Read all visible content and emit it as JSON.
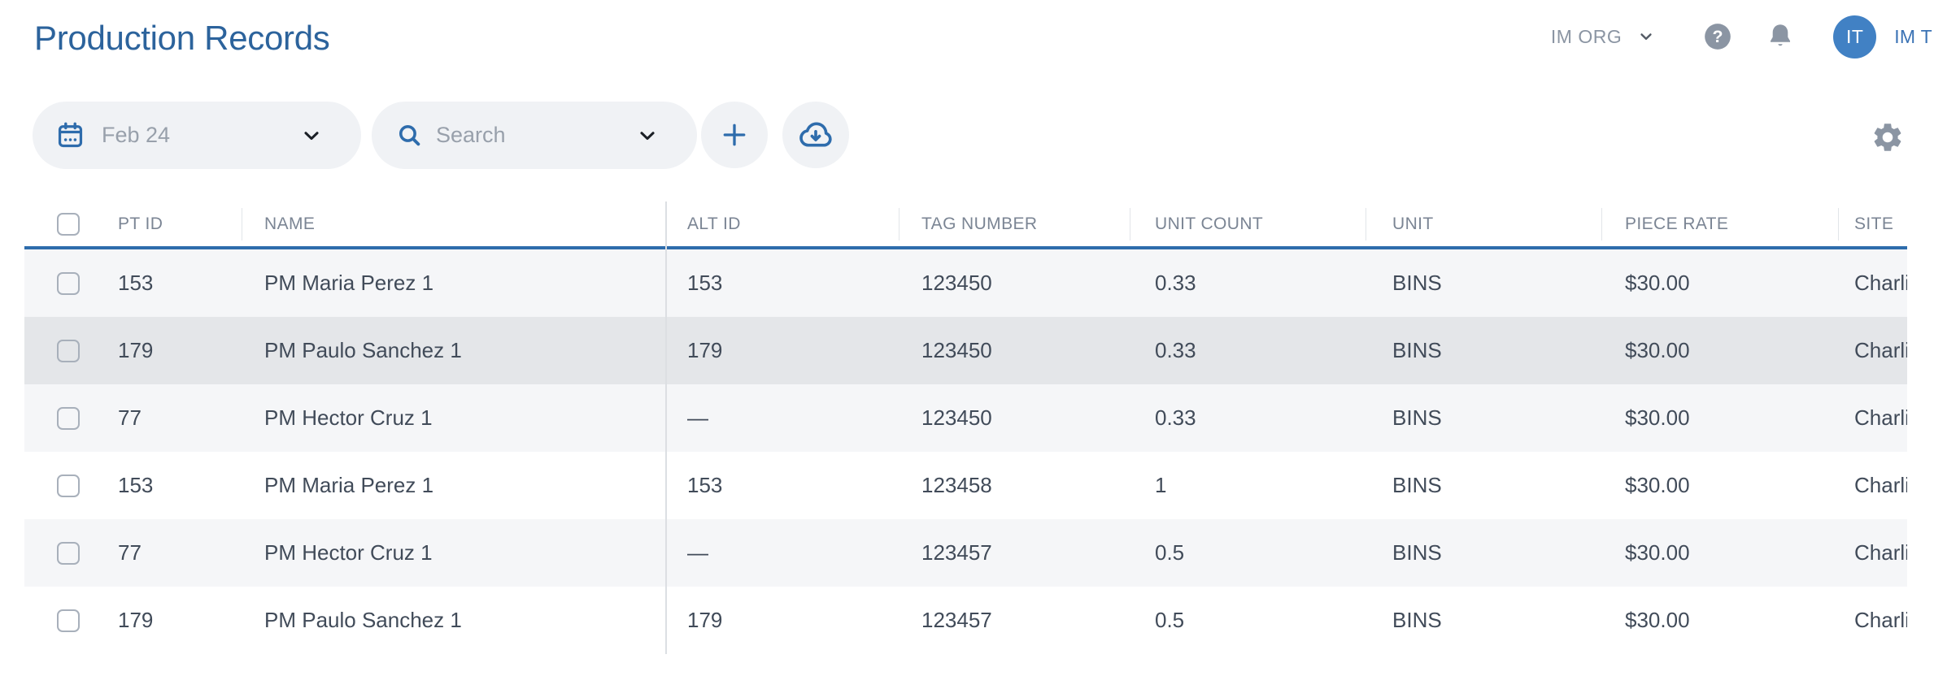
{
  "page": {
    "title": "Production Records"
  },
  "top_nav": {
    "org_label": "IM ORG",
    "user_initials": "IT",
    "user_name": "IM T",
    "icons": [
      "chevron-down",
      "help-circle",
      "bell"
    ]
  },
  "toolbar": {
    "date_filter": "Feb 24",
    "search_placeholder": "Search",
    "icons": [
      "calendar",
      "search",
      "plus",
      "cloud-download",
      "gear"
    ]
  },
  "table": {
    "columns": [
      "PT ID",
      "NAME",
      "ALT ID",
      "TAG NUMBER",
      "UNIT COUNT",
      "UNIT",
      "PIECE RATE",
      "SITE"
    ],
    "select_all_checked": false,
    "rows": [
      {
        "checked": false,
        "highlighted": false,
        "pt_id": "153",
        "name": "PM Maria Perez 1",
        "alt_id": "153",
        "tag_number": "123450",
        "unit_count": "0.33",
        "unit": "BINS",
        "piece_rate": "$30.00",
        "site": "Charli"
      },
      {
        "checked": false,
        "highlighted": true,
        "pt_id": "179",
        "name": "PM Paulo Sanchez 1",
        "alt_id": "179",
        "tag_number": "123450",
        "unit_count": "0.33",
        "unit": "BINS",
        "piece_rate": "$30.00",
        "site": "Charli"
      },
      {
        "checked": false,
        "highlighted": false,
        "pt_id": "77",
        "name": "PM Hector Cruz 1",
        "alt_id": "—",
        "tag_number": "123450",
        "unit_count": "0.33",
        "unit": "BINS",
        "piece_rate": "$30.00",
        "site": "Charli"
      },
      {
        "checked": false,
        "highlighted": false,
        "pt_id": "153",
        "name": "PM Maria Perez 1",
        "alt_id": "153",
        "tag_number": "123458",
        "unit_count": "1",
        "unit": "BINS",
        "piece_rate": "$30.00",
        "site": "Charli"
      },
      {
        "checked": false,
        "highlighted": false,
        "pt_id": "77",
        "name": "PM Hector Cruz 1",
        "alt_id": "—",
        "tag_number": "123457",
        "unit_count": "0.5",
        "unit": "BINS",
        "piece_rate": "$30.00",
        "site": "Charli"
      },
      {
        "checked": false,
        "highlighted": false,
        "pt_id": "179",
        "name": "PM Paulo Sanchez 1",
        "alt_id": "179",
        "tag_number": "123457",
        "unit_count": "0.5",
        "unit": "BINS",
        "piece_rate": "$30.00",
        "site": "Charli"
      }
    ]
  },
  "colors": {
    "accent_blue": "#2e6cac",
    "title_blue": "#2c639c",
    "avatar_blue": "#4181c4",
    "link_blue": "#3a72b4",
    "icon_gray": "#8b95a3",
    "header_text": "#7b8594",
    "row_text": "#414b59",
    "muted_text": "#98a0ab",
    "pill_bg": "#f0f2f5",
    "stripe_bg": "#f5f6f8",
    "highlight_bg": "#e4e6e9"
  }
}
